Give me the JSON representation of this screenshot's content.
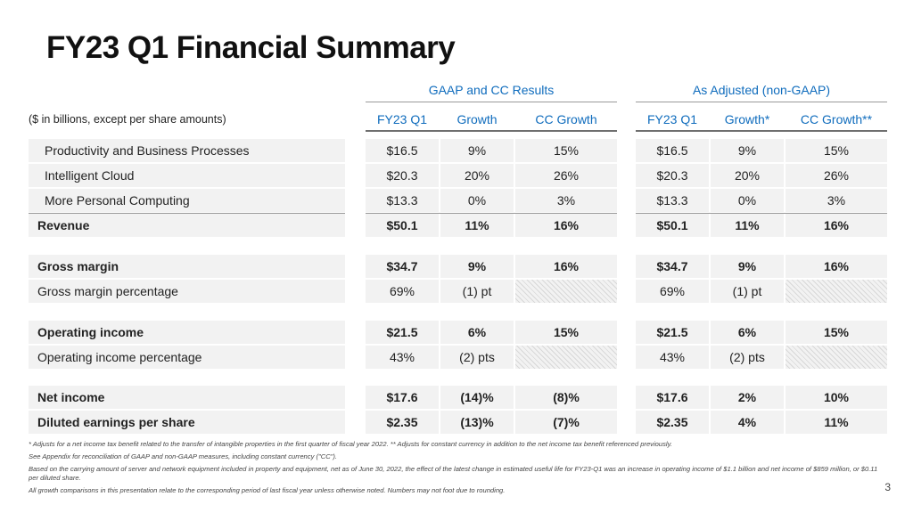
{
  "title": "FY23 Q1 Financial Summary",
  "units_note": "($ in billions, except per share amounts)",
  "groups": {
    "gaap": "GAAP and CC Results",
    "adjusted": "As Adjusted (non-GAAP)"
  },
  "columns": [
    "FY23 Q1",
    "Growth",
    "CC Growth",
    "FY23 Q1",
    "Growth*",
    "CC Growth**"
  ],
  "rows": [
    {
      "label": "Productivity and Business Processes",
      "cells": [
        "$16.5",
        "9%",
        "15%",
        "$16.5",
        "9%",
        "15%"
      ]
    },
    {
      "label": "Intelligent Cloud",
      "cells": [
        "$20.3",
        "20%",
        "26%",
        "$20.3",
        "20%",
        "26%"
      ]
    },
    {
      "label": "More Personal Computing",
      "cells": [
        "$13.3",
        "0%",
        "3%",
        "$13.3",
        "0%",
        "3%"
      ]
    },
    {
      "label": "Revenue",
      "cells": [
        "$50.1",
        "11%",
        "16%",
        "$50.1",
        "11%",
        "16%"
      ]
    },
    {
      "label": "Gross margin",
      "cells": [
        "$34.7",
        "9%",
        "16%",
        "$34.7",
        "9%",
        "16%"
      ]
    },
    {
      "label": "Gross margin percentage",
      "cells": [
        "69%",
        "(1) pt",
        "",
        "69%",
        "(1) pt",
        ""
      ]
    },
    {
      "label": "Operating income",
      "cells": [
        "$21.5",
        "6%",
        "15%",
        "$21.5",
        "6%",
        "15%"
      ]
    },
    {
      "label": "Operating income percentage",
      "cells": [
        "43%",
        "(2) pts",
        "",
        "43%",
        "(2) pts",
        ""
      ]
    },
    {
      "label": "Net income",
      "cells": [
        "$17.6",
        "(14)%",
        "(8)%",
        "$17.6",
        "2%",
        "10%"
      ]
    },
    {
      "label": "Diluted earnings per share",
      "cells": [
        "$2.35",
        "(13)%",
        "(7)%",
        "$2.35",
        "4%",
        "11%"
      ]
    }
  ],
  "footnotes": [
    "* Adjusts for a net income tax benefit related to the transfer of intangible properties in the first quarter of fiscal year 2022.  ** Adjusts for constant currency in addition to the net income tax benefit referenced previously.",
    "See Appendix for reconciliation of GAAP and non-GAAP measures, including constant currency (\"CC\").",
    "Based on the carrying amount of server and network equipment included in property and equipment, net as of June 30, 2022, the effect of the latest change in estimated useful life for FY23-Q1 was an increase in operating income of $1.1 billion and net income of $859 million, or $0.11 per diluted share.",
    "All growth comparisons in this presentation relate to the corresponding period of last fiscal year unless otherwise noted. Numbers may not foot due to rounding."
  ],
  "page_number": "3"
}
